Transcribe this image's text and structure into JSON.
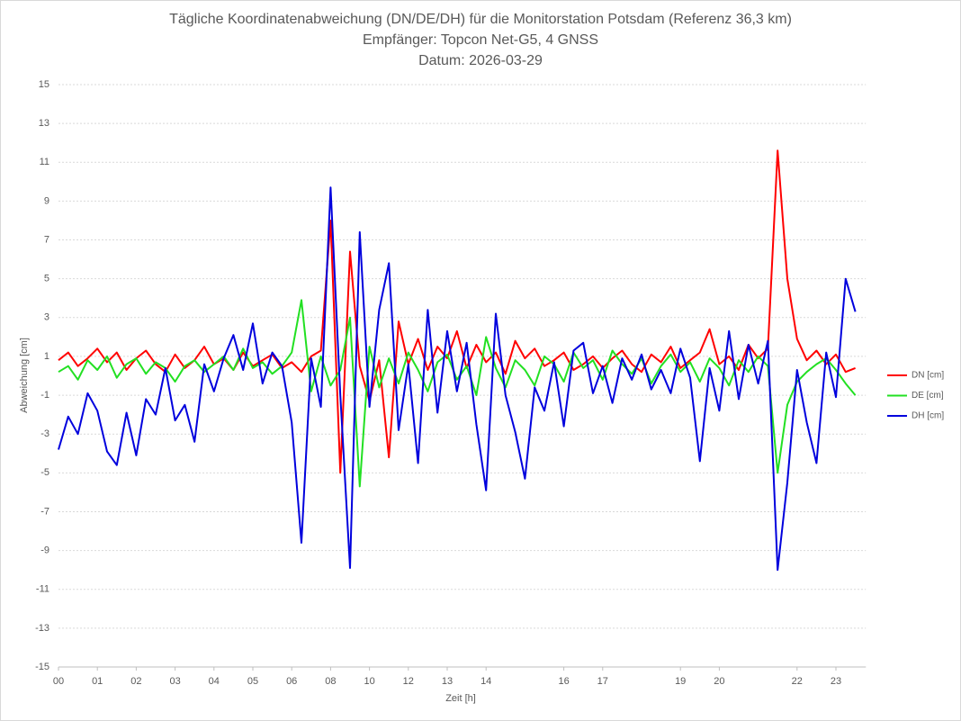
{
  "chart_data": {
    "type": "line",
    "title": "Tägliche Koordinatenabweichung (DN/DE/DH) für die Monitorstation Potsdam (Referenz 36,3 km)",
    "subtitle": "Empfänger: Topcon Net-G5, 4 GNSS",
    "date_label": "Datum: 2026-03-29",
    "x_label": "Zeit [h]",
    "y_label": "Abweichung [cm]",
    "legend": "right",
    "grid": true,
    "xlim": [
      0,
      21
    ],
    "ylim": [
      -15,
      15
    ],
    "yticks": [
      -15,
      -13,
      -11,
      -9,
      -7,
      -5,
      -3,
      -1,
      1,
      3,
      5,
      7,
      9,
      11,
      13,
      15
    ],
    "xticks": [
      {
        "value": 0,
        "label": "00"
      },
      {
        "value": 1,
        "label": "01"
      },
      {
        "value": 2,
        "label": "02"
      },
      {
        "value": 3,
        "label": "03"
      },
      {
        "value": 4,
        "label": "04"
      },
      {
        "value": 5,
        "label": "05"
      },
      {
        "value": 6,
        "label": "06"
      },
      {
        "value": 7,
        "label": "08"
      },
      {
        "value": 8,
        "label": "10"
      },
      {
        "value": 9,
        "label": "12"
      },
      {
        "value": 10,
        "label": "13"
      },
      {
        "value": 11,
        "label": "14"
      },
      {
        "value": 13,
        "label": "16"
      },
      {
        "value": 14,
        "label": "17"
      },
      {
        "value": 16,
        "label": "19"
      },
      {
        "value": 17,
        "label": "20"
      },
      {
        "value": 19,
        "label": "22"
      },
      {
        "value": 20,
        "label": "23"
      }
    ],
    "x": [
      0,
      0.25,
      0.5,
      0.75,
      1,
      1.25,
      1.5,
      1.75,
      2,
      2.25,
      2.5,
      2.75,
      3,
      3.25,
      3.5,
      3.75,
      4,
      4.25,
      4.5,
      4.75,
      5,
      5.25,
      5.5,
      5.75,
      6,
      6.25,
      6.5,
      6.75,
      7,
      7.25,
      7.5,
      7.75,
      8,
      8.25,
      8.5,
      8.75,
      9,
      9.25,
      9.5,
      9.75,
      10,
      10.25,
      10.5,
      10.75,
      11,
      11.25,
      11.5,
      11.75,
      12,
      12.25,
      12.5,
      12.75,
      13,
      13.25,
      13.5,
      13.75,
      14,
      14.25,
      14.5,
      14.75,
      15,
      15.25,
      15.5,
      15.75,
      16,
      16.25,
      16.5,
      16.75,
      17,
      17.25,
      17.5,
      17.75,
      18,
      18.25,
      18.5,
      18.75,
      19,
      19.25,
      19.5,
      19.75,
      20,
      20.25,
      20.5
    ],
    "series": [
      {
        "name": "DN [cm]",
        "color": "#ff0000",
        "values": [
          0.8,
          1.2,
          0.5,
          0.9,
          1.4,
          0.7,
          1.2,
          0.3,
          0.9,
          1.3,
          0.6,
          0.2,
          1.1,
          0.4,
          0.8,
          1.5,
          0.6,
          0.9,
          0.3,
          1.2,
          0.5,
          0.8,
          1.1,
          0.4,
          0.7,
          0.2,
          1.0,
          1.3,
          8.0,
          -5.0,
          6.4,
          0.5,
          -1.3,
          0.8,
          -4.2,
          2.8,
          0.6,
          1.9,
          0.3,
          1.5,
          0.9,
          2.3,
          0.4,
          1.6,
          0.7,
          1.2,
          0.1,
          1.8,
          0.9,
          1.4,
          0.5,
          0.8,
          1.2,
          0.3,
          0.6,
          1.0,
          0.4,
          0.9,
          1.3,
          0.6,
          0.2,
          1.1,
          0.7,
          1.5,
          0.4,
          0.8,
          1.2,
          2.4,
          0.6,
          1.0,
          0.3,
          1.6,
          0.9,
          1.4,
          11.6,
          5.0,
          1.9,
          0.8,
          1.3,
          0.6,
          1.1,
          0.2,
          0.4
        ]
      },
      {
        "name": "DE [cm]",
        "color": "#22e022",
        "values": [
          0.2,
          0.5,
          -0.2,
          0.8,
          0.3,
          1.0,
          -0.1,
          0.6,
          0.9,
          0.1,
          0.7,
          0.4,
          -0.3,
          0.5,
          0.8,
          0.2,
          0.6,
          1.0,
          0.3,
          1.4,
          0.4,
          0.7,
          0.1,
          0.5,
          1.2,
          3.9,
          -0.8,
          1.0,
          -0.5,
          0.3,
          3.0,
          -5.7,
          1.5,
          -0.6,
          0.9,
          -0.4,
          1.2,
          0.3,
          -0.8,
          0.7,
          1.1,
          -0.2,
          0.5,
          -1.0,
          2.0,
          0.4,
          -0.6,
          0.8,
          0.3,
          -0.5,
          1.0,
          0.6,
          -0.3,
          1.2,
          0.4,
          0.8,
          -0.2,
          1.3,
          0.6,
          0.1,
          0.9,
          -0.4,
          0.5,
          1.1,
          0.2,
          0.7,
          -0.3,
          0.9,
          0.4,
          -0.5,
          0.8,
          0.2,
          1.0,
          0.5,
          -5.0,
          -1.5,
          -0.3,
          0.2,
          0.6,
          0.9,
          0.3,
          -0.4,
          -1.0
        ]
      },
      {
        "name": "DH [cm]",
        "color": "#0000dd",
        "values": [
          -3.8,
          -2.1,
          -3.0,
          -0.9,
          -1.8,
          -3.9,
          -4.6,
          -1.9,
          -4.1,
          -1.2,
          -2.0,
          0.4,
          -2.3,
          -1.5,
          -3.4,
          0.6,
          -0.8,
          0.9,
          2.1,
          0.3,
          2.7,
          -0.4,
          1.2,
          0.5,
          -2.4,
          -8.6,
          0.9,
          -1.6,
          9.7,
          -1.0,
          -9.9,
          7.4,
          -1.6,
          3.4,
          5.8,
          -2.8,
          0.6,
          -4.5,
          3.4,
          -1.9,
          2.3,
          -0.8,
          1.7,
          -2.5,
          -5.9,
          3.2,
          -1.0,
          -2.9,
          -5.3,
          -0.6,
          -1.8,
          0.7,
          -2.6,
          1.3,
          1.7,
          -0.9,
          0.5,
          -1.4,
          0.9,
          -0.2,
          1.1,
          -0.7,
          0.3,
          -0.9,
          1.4,
          -0.1,
          -4.4,
          0.4,
          -1.8,
          2.3,
          -1.2,
          1.6,
          -0.4,
          1.8,
          -10.0,
          -5.5,
          0.3,
          -2.4,
          -4.5,
          1.2,
          -1.1,
          5.0,
          3.3
        ]
      }
    ]
  }
}
